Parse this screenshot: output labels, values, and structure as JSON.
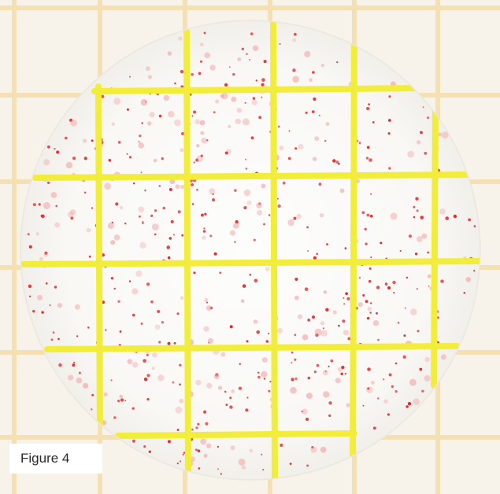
{
  "figure": {
    "label": "Figure 4"
  },
  "colors": {
    "background_paper": "#f7f3ea",
    "paper_grid_line": "#f4dfae",
    "plate_surface": "#fbfaf7",
    "count_grid_line": "#f2ec3a",
    "colony_red": "#e8262a",
    "colony_faint": "#f3a3a4"
  }
}
